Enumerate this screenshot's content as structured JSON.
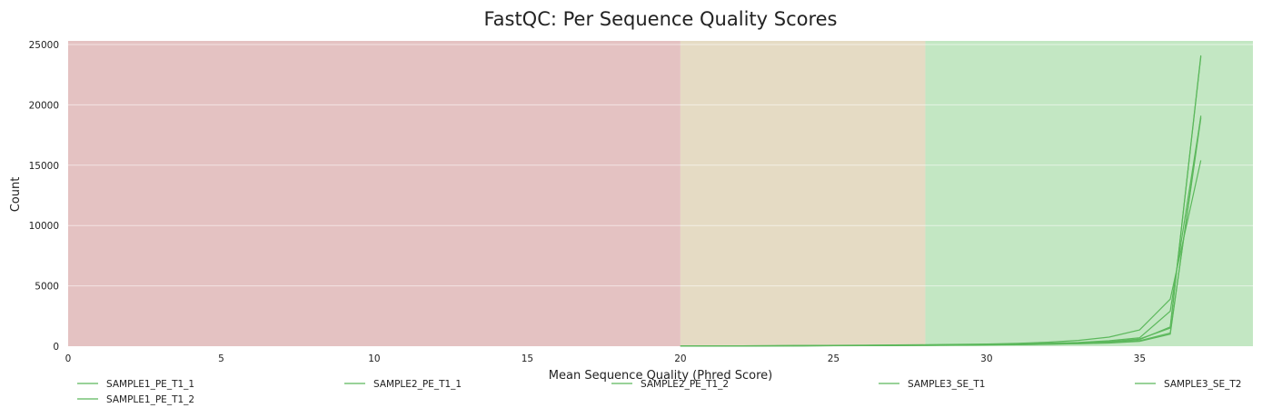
{
  "chart_data": {
    "type": "line",
    "title": "FastQC: Per Sequence Quality Scores",
    "xlabel": "Mean Sequence Quality (Phred Score)",
    "ylabel": "Count",
    "xlim": [
      0,
      38.7
    ],
    "ylim": [
      0,
      25300
    ],
    "xticks": [
      0,
      5,
      10,
      15,
      20,
      25,
      30,
      35
    ],
    "yticks": [
      0,
      5000,
      10000,
      15000,
      20000,
      25000
    ],
    "grid": true,
    "legend_position": "bottom",
    "bands": [
      {
        "from": 0,
        "to": 20,
        "color": "#e4c2c2"
      },
      {
        "from": 20,
        "to": 28,
        "color": "#e5dbc4"
      },
      {
        "from": 28,
        "to": 38.7,
        "color": "#c3e7c3"
      }
    ],
    "series": [
      {
        "name": "SAMPLE1_PE_T1_1",
        "color": "#5cb85c",
        "x": [
          20,
          22,
          24,
          26,
          28,
          30,
          31,
          32,
          33,
          34,
          35,
          36,
          37
        ],
        "y": [
          20,
          30,
          50,
          70,
          100,
          150,
          180,
          250,
          320,
          450,
          700,
          2900,
          19000
        ]
      },
      {
        "name": "SAMPLE1_PE_T1_2",
        "color": "#5cb85c",
        "x": [
          20,
          22,
          24,
          26,
          28,
          30,
          31,
          32,
          33,
          34,
          35,
          36,
          37
        ],
        "y": [
          20,
          30,
          60,
          90,
          120,
          180,
          230,
          330,
          480,
          750,
          1350,
          3900,
          15400
        ]
      },
      {
        "name": "SAMPLE2_PE_T1_1",
        "color": "#5cb85c",
        "x": [
          20,
          22,
          24,
          26,
          28,
          30,
          31,
          32,
          33,
          34,
          35,
          36,
          37
        ],
        "y": [
          15,
          25,
          40,
          60,
          90,
          130,
          160,
          210,
          280,
          380,
          600,
          1500,
          24100
        ]
      },
      {
        "name": "SAMPLE2_PE_T1_2",
        "color": "#5cb85c",
        "x": [
          20,
          22,
          24,
          26,
          28,
          30,
          31,
          32,
          33,
          34,
          35,
          36,
          37
        ],
        "y": [
          15,
          25,
          40,
          55,
          80,
          120,
          150,
          200,
          260,
          350,
          550,
          1600,
          24000
        ]
      },
      {
        "name": "SAMPLE3_SE_T1",
        "color": "#5cb85c",
        "x": [
          20,
          22,
          24,
          26,
          28,
          30,
          31,
          32,
          33,
          34,
          35,
          36,
          37
        ],
        "y": [
          10,
          20,
          30,
          45,
          70,
          100,
          120,
          160,
          200,
          260,
          400,
          1000,
          19100
        ]
      },
      {
        "name": "SAMPLE3_SE_T2",
        "color": "#5cb85c",
        "x": [
          20,
          22,
          24,
          26,
          28,
          30,
          31,
          32,
          33,
          34,
          35,
          36,
          37
        ],
        "y": [
          10,
          20,
          35,
          50,
          75,
          110,
          130,
          170,
          220,
          290,
          450,
          1100,
          18900
        ]
      }
    ]
  }
}
